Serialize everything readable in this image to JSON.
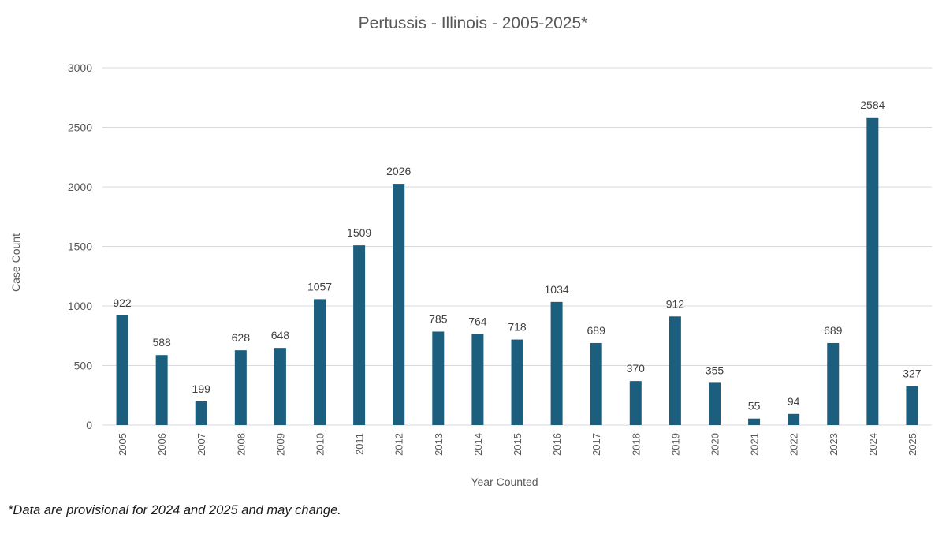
{
  "chart_data": {
    "type": "bar",
    "title": "Pertussis - Illinois - 2005-2025*",
    "xlabel": "Year Counted",
    "ylabel": "Case Count",
    "ylim": [
      0,
      3000
    ],
    "yticks": [
      0,
      500,
      1000,
      1500,
      2000,
      2500,
      3000
    ],
    "categories": [
      "2005",
      "2006",
      "2007",
      "2008",
      "2009",
      "2010",
      "2011",
      "2012",
      "2013",
      "2014",
      "2015",
      "2016",
      "2017",
      "2018",
      "2019",
      "2020",
      "2021",
      "2022",
      "2023",
      "2024",
      "2025"
    ],
    "values": [
      922,
      588,
      199,
      628,
      648,
      1057,
      1509,
      2026,
      785,
      764,
      718,
      1034,
      689,
      370,
      912,
      355,
      55,
      94,
      689,
      2584,
      327
    ],
    "data_labels": true,
    "grid": "horizontal",
    "bar_color": "#1b5e7e"
  },
  "footnote": "*Data are provisional for 2024 and 2025 and may change."
}
